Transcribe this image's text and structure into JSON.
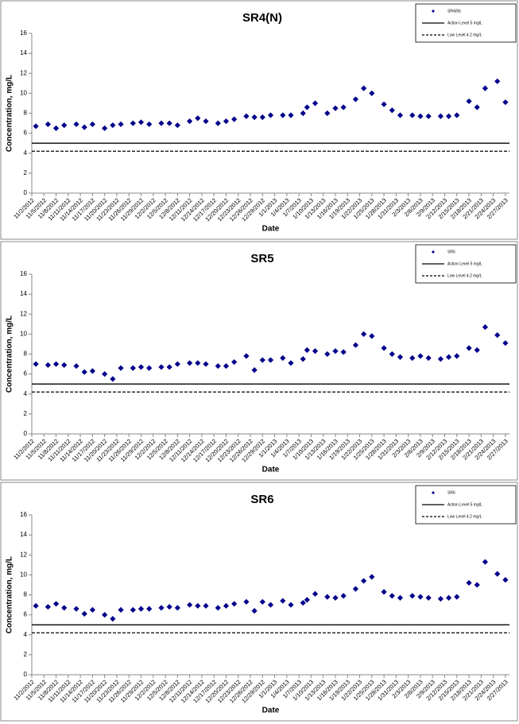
{
  "chart_data": [
    {
      "type": "scatter",
      "title": "SR4(N)",
      "xlabel": "Date",
      "ylabel": "Concentration, mg/L",
      "xlim": [
        "11/2/2012",
        "2/28/2013"
      ],
      "ylim": [
        0,
        16
      ],
      "yticks": [
        0,
        2,
        4,
        6,
        8,
        10,
        12,
        14,
        16
      ],
      "xticks": [
        "11/2/2012",
        "11/5/2012",
        "11/8/2012",
        "11/11/2012",
        "11/14/2012",
        "11/17/2012",
        "11/20/2012",
        "11/23/2012",
        "11/26/2012",
        "11/29/2012",
        "12/2/2012",
        "12/5/2012",
        "12/8/2012",
        "12/11/2012",
        "12/14/2012",
        "12/17/2012",
        "12/20/2012",
        "12/23/2012",
        "12/26/2012",
        "12/29/2012",
        "1/1/2013",
        "1/4/2013",
        "1/7/2013",
        "1/10/2013",
        "1/13/2013",
        "1/16/2013",
        "1/19/2013",
        "1/22/2013",
        "1/25/2013",
        "1/28/2013",
        "1/31/2013",
        "2/3/2013",
        "2/6/2013",
        "2/9/2013",
        "2/12/2013",
        "2/15/2013",
        "2/18/2013",
        "2/21/2013",
        "2/24/2013",
        "2/27/2013"
      ],
      "legend": "upper right",
      "series": [
        {
          "name": "SR4(N)",
          "color": "#00008b",
          "x": [
            "11/3/2012",
            "11/6/2012",
            "11/8/2012",
            "11/10/2012",
            "11/13/2012",
            "11/15/2012",
            "11/17/2012",
            "11/20/2012",
            "11/22/2012",
            "11/24/2012",
            "11/27/2012",
            "11/29/2012",
            "12/1/2012",
            "12/4/2012",
            "12/6/2012",
            "12/8/2012",
            "12/11/2012",
            "12/13/2012",
            "12/15/2012",
            "12/18/2012",
            "12/20/2012",
            "12/22/2012",
            "12/25/2012",
            "12/27/2012",
            "12/29/2012",
            "12/31/2012",
            "1/3/2013",
            "1/5/2013",
            "1/8/2013",
            "1/9/2013",
            "1/11/2013",
            "1/14/2013",
            "1/16/2013",
            "1/18/2013",
            "1/21/2013",
            "1/23/2013",
            "1/25/2013",
            "1/28/2013",
            "1/30/2013",
            "2/1/2013",
            "2/4/2013",
            "2/6/2013",
            "2/8/2013",
            "2/11/2013",
            "2/13/2013",
            "2/15/2013",
            "2/18/2013",
            "2/20/2013",
            "2/22/2013",
            "2/25/2013",
            "2/27/2013"
          ],
          "values": [
            6.7,
            6.9,
            6.5,
            6.8,
            6.9,
            6.6,
            6.9,
            6.5,
            6.8,
            6.9,
            7.0,
            7.1,
            6.9,
            7.0,
            7.0,
            6.8,
            7.2,
            7.5,
            7.2,
            7.0,
            7.2,
            7.4,
            7.7,
            7.6,
            7.6,
            7.8,
            7.8,
            7.8,
            8.0,
            8.6,
            9.0,
            8.0,
            8.5,
            8.6,
            9.4,
            10.5,
            10.0,
            8.9,
            8.3,
            7.8,
            7.8,
            7.7,
            7.7,
            7.7,
            7.7,
            7.8,
            9.2,
            8.6,
            10.5,
            11.2,
            9.1
          ]
        },
        {
          "name": "Action Level 5 mg/L",
          "color": "#000000",
          "value": 5,
          "dashed": false
        },
        {
          "name": "Low Level 4.2 mg/L",
          "color": "#000000",
          "value": 4.2,
          "dashed": true
        }
      ]
    },
    {
      "type": "scatter",
      "title": "SR5",
      "xlabel": "Date",
      "ylabel": "Concentration, mg/L",
      "xlim": [
        "11/2/2012",
        "2/28/2013"
      ],
      "ylim": [
        0,
        16
      ],
      "yticks": [
        0,
        2,
        4,
        6,
        8,
        10,
        12,
        14,
        16
      ],
      "xticks": [
        "11/2/2012",
        "11/5/2012",
        "11/8/2012",
        "11/11/2012",
        "11/14/2012",
        "11/17/2012",
        "11/20/2012",
        "11/23/2012",
        "11/26/2012",
        "11/29/2012",
        "12/2/2012",
        "12/5/2012",
        "12/8/2012",
        "12/11/2012",
        "12/14/2012",
        "12/17/2012",
        "12/20/2012",
        "12/23/2012",
        "12/26/2012",
        "12/29/2012",
        "1/1/2013",
        "1/4/2013",
        "1/7/2013",
        "1/10/2013",
        "1/13/2013",
        "1/16/2013",
        "1/19/2013",
        "1/22/2013",
        "1/25/2013",
        "1/28/2013",
        "1/31/2013",
        "2/3/2013",
        "2/6/2013",
        "2/9/2013",
        "2/12/2013",
        "2/15/2013",
        "2/18/2013",
        "2/21/2013",
        "2/24/2013",
        "2/27/2013"
      ],
      "legend": "upper right",
      "series": [
        {
          "name": "SR5",
          "color": "#00008b",
          "x": [
            "11/3/2012",
            "11/6/2012",
            "11/8/2012",
            "11/10/2012",
            "11/13/2012",
            "11/15/2012",
            "11/17/2012",
            "11/20/2012",
            "11/22/2012",
            "11/24/2012",
            "11/27/2012",
            "11/29/2012",
            "12/1/2012",
            "12/4/2012",
            "12/6/2012",
            "12/8/2012",
            "12/11/2012",
            "12/13/2012",
            "12/15/2012",
            "12/18/2012",
            "12/20/2012",
            "12/22/2012",
            "12/25/2012",
            "12/27/2012",
            "12/29/2012",
            "12/31/2012",
            "1/3/2013",
            "1/5/2013",
            "1/8/2013",
            "1/9/2013",
            "1/11/2013",
            "1/14/2013",
            "1/16/2013",
            "1/18/2013",
            "1/21/2013",
            "1/23/2013",
            "1/25/2013",
            "1/28/2013",
            "1/30/2013",
            "2/1/2013",
            "2/4/2013",
            "2/6/2013",
            "2/8/2013",
            "2/11/2013",
            "2/13/2013",
            "2/15/2013",
            "2/18/2013",
            "2/20/2013",
            "2/22/2013",
            "2/25/2013",
            "2/27/2013"
          ],
          "values": [
            7.0,
            6.9,
            7.0,
            6.9,
            6.8,
            6.2,
            6.3,
            6.0,
            5.5,
            6.6,
            6.6,
            6.7,
            6.6,
            6.7,
            6.7,
            7.0,
            7.1,
            7.1,
            7.0,
            6.8,
            6.8,
            7.2,
            7.8,
            6.4,
            7.4,
            7.4,
            7.6,
            7.1,
            7.5,
            8.4,
            8.3,
            8.0,
            8.3,
            8.2,
            8.9,
            10.0,
            9.8,
            8.6,
            8.0,
            7.7,
            7.6,
            7.8,
            7.6,
            7.5,
            7.7,
            7.8,
            8.6,
            8.4,
            10.7,
            9.9,
            9.1
          ]
        },
        {
          "name": "Action Level 5 mg/L",
          "color": "#000000",
          "value": 5,
          "dashed": false
        },
        {
          "name": "Low Level 4.2 mg/L",
          "color": "#000000",
          "value": 4.2,
          "dashed": true
        }
      ]
    },
    {
      "type": "scatter",
      "title": "SR6",
      "xlabel": "Date",
      "ylabel": "Concentration, mg/L",
      "xlim": [
        "11/2/2012",
        "2/28/2013"
      ],
      "ylim": [
        0,
        16
      ],
      "yticks": [
        0,
        2,
        4,
        6,
        8,
        10,
        12,
        14,
        16
      ],
      "xticks": [
        "11/2/2012",
        "11/5/2012",
        "11/8/2012",
        "11/11/2012",
        "11/14/2012",
        "11/17/2012",
        "11/20/2012",
        "11/23/2012",
        "11/26/2012",
        "11/29/2012",
        "12/2/2012",
        "12/5/2012",
        "12/8/2012",
        "12/11/2012",
        "12/14/2012",
        "12/17/2012",
        "12/20/2012",
        "12/23/2012",
        "12/26/2012",
        "12/29/2012",
        "1/1/2013",
        "1/4/2013",
        "1/7/2013",
        "1/10/2013",
        "1/13/2013",
        "1/16/2013",
        "1/19/2013",
        "1/22/2013",
        "1/25/2013",
        "1/28/2013",
        "1/31/2013",
        "2/3/2013",
        "2/6/2013",
        "2/9/2013",
        "2/12/2013",
        "2/15/2013",
        "2/18/2013",
        "2/21/2013",
        "2/24/2013",
        "2/27/2013"
      ],
      "legend": "upper right",
      "series": [
        {
          "name": "SR6",
          "color": "#00008b",
          "x": [
            "11/3/2012",
            "11/6/2012",
            "11/8/2012",
            "11/10/2012",
            "11/13/2012",
            "11/15/2012",
            "11/17/2012",
            "11/20/2012",
            "11/22/2012",
            "11/24/2012",
            "11/27/2012",
            "11/29/2012",
            "12/1/2012",
            "12/4/2012",
            "12/6/2012",
            "12/8/2012",
            "12/11/2012",
            "12/13/2012",
            "12/15/2012",
            "12/18/2012",
            "12/20/2012",
            "12/22/2012",
            "12/25/2012",
            "12/27/2012",
            "12/29/2012",
            "12/31/2012",
            "1/3/2013",
            "1/5/2013",
            "1/8/2013",
            "1/9/2013",
            "1/11/2013",
            "1/14/2013",
            "1/16/2013",
            "1/18/2013",
            "1/21/2013",
            "1/23/2013",
            "1/25/2013",
            "1/28/2013",
            "1/30/2013",
            "2/1/2013",
            "2/4/2013",
            "2/6/2013",
            "2/8/2013",
            "2/11/2013",
            "2/13/2013",
            "2/15/2013",
            "2/18/2013",
            "2/20/2013",
            "2/22/2013",
            "2/25/2013",
            "2/27/2013"
          ],
          "values": [
            6.9,
            6.8,
            7.1,
            6.7,
            6.6,
            6.1,
            6.5,
            6.0,
            5.6,
            6.5,
            6.5,
            6.6,
            6.6,
            6.7,
            6.8,
            6.7,
            7.0,
            6.9,
            6.9,
            6.7,
            6.9,
            7.1,
            7.3,
            6.4,
            7.3,
            7.0,
            7.4,
            7.0,
            7.2,
            7.5,
            8.1,
            7.8,
            7.7,
            7.9,
            8.6,
            9.4,
            9.8,
            8.3,
            7.9,
            7.7,
            7.9,
            7.8,
            7.7,
            7.6,
            7.7,
            7.8,
            9.2,
            9.0,
            11.3,
            10.1,
            9.5
          ]
        },
        {
          "name": "Action Level 5 mg/L",
          "color": "#000000",
          "value": 5,
          "dashed": false
        },
        {
          "name": "Low Level 4.2 mg/L",
          "color": "#000000",
          "value": 4.2,
          "dashed": true
        }
      ]
    }
  ]
}
